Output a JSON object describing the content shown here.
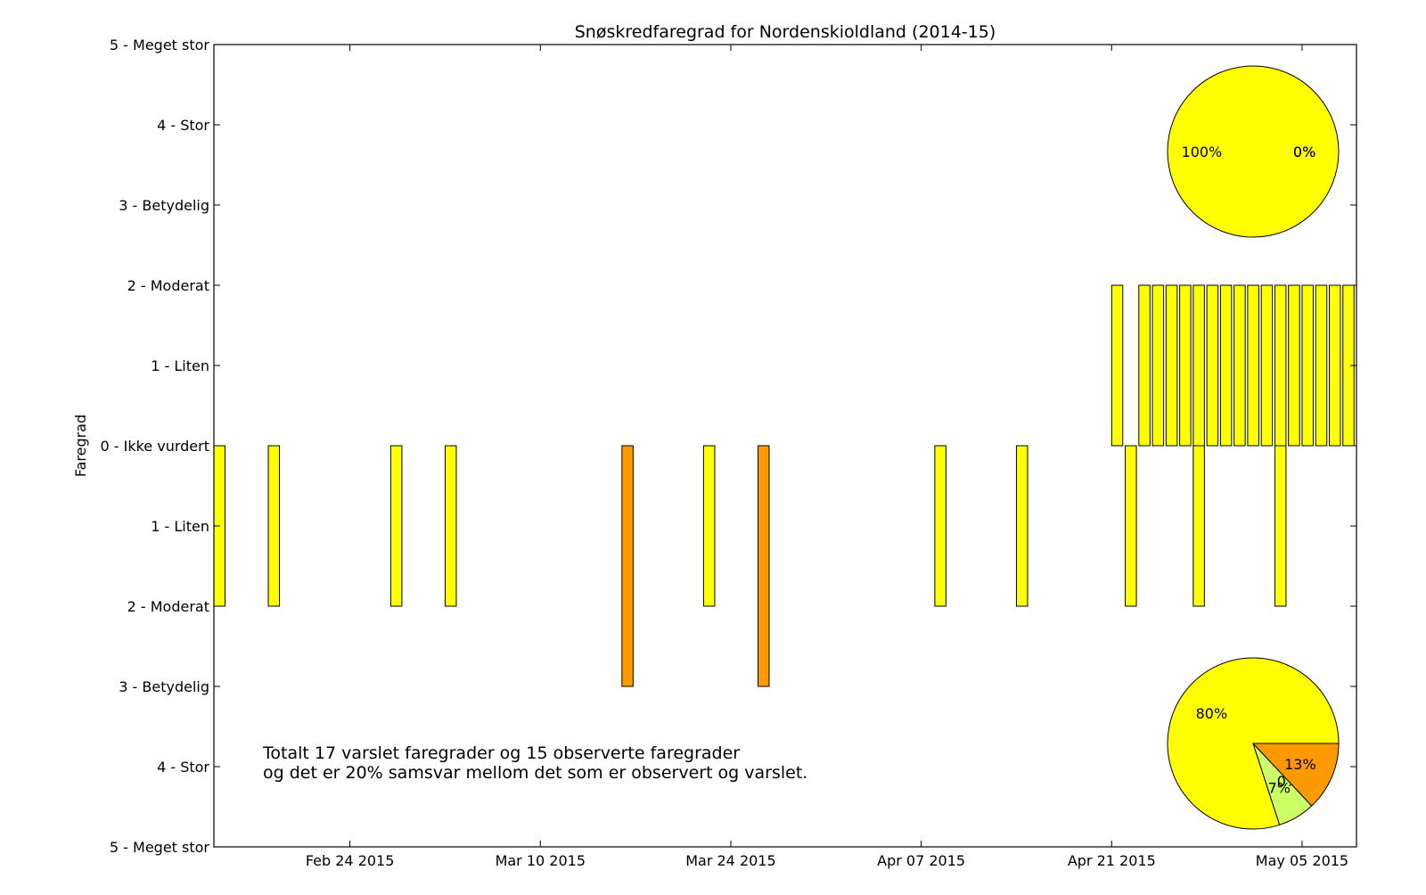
{
  "chart_data": {
    "type": "bar",
    "title": "Snøskredfaregrad for Nordenskioldland (2014-15)",
    "ylabel": "Faregrad",
    "ylim": [
      -5,
      5
    ],
    "xlim": [
      "2015-02-14",
      "2015-05-09"
    ],
    "y_tick_values": [
      5,
      4,
      3,
      2,
      1,
      0,
      -1,
      -2,
      -3,
      -4,
      -5
    ],
    "y_tick_labels": [
      "5 - Meget stor",
      "4 - Stor",
      "3 - Betydelig",
      "2 - Moderat",
      "1 - Liten",
      "0 - Ikke vurdert",
      "1 - Liten",
      "2 - Moderat",
      "3 - Betydelig",
      "4 - Stor",
      "5 - Meget stor"
    ],
    "x_ticks": [
      {
        "date": "2015-02-24",
        "label": "Feb 24 2015"
      },
      {
        "date": "2015-03-10",
        "label": "Mar 10 2015"
      },
      {
        "date": "2015-03-24",
        "label": "Mar 24 2015"
      },
      {
        "date": "2015-04-07",
        "label": "Apr 07 2015"
      },
      {
        "date": "2015-04-21",
        "label": "Apr 21 2015"
      },
      {
        "date": "2015-05-05",
        "label": "May 05 2015"
      }
    ],
    "series": [
      {
        "direction": "up",
        "bars": [
          {
            "date": "2015-04-21",
            "value": 2,
            "color": "#ffff00"
          },
          {
            "date": "2015-04-23",
            "value": 2,
            "color": "#ffff00"
          },
          {
            "date": "2015-04-24",
            "value": 2,
            "color": "#ffff00"
          },
          {
            "date": "2015-04-25",
            "value": 2,
            "color": "#ffff00"
          },
          {
            "date": "2015-04-26",
            "value": 2,
            "color": "#ffff00"
          },
          {
            "date": "2015-04-27",
            "value": 2,
            "color": "#ffff00"
          },
          {
            "date": "2015-04-28",
            "value": 2,
            "color": "#ffff00"
          },
          {
            "date": "2015-04-29",
            "value": 2,
            "color": "#ffff00"
          },
          {
            "date": "2015-04-30",
            "value": 2,
            "color": "#ffff00"
          },
          {
            "date": "2015-05-01",
            "value": 2,
            "color": "#ffff00"
          },
          {
            "date": "2015-05-02",
            "value": 2,
            "color": "#ffff00"
          },
          {
            "date": "2015-05-03",
            "value": 2,
            "color": "#ffff00"
          },
          {
            "date": "2015-05-04",
            "value": 2,
            "color": "#ffff00"
          },
          {
            "date": "2015-05-05",
            "value": 2,
            "color": "#ffff00"
          },
          {
            "date": "2015-05-06",
            "value": 2,
            "color": "#ffff00"
          },
          {
            "date": "2015-05-07",
            "value": 2,
            "color": "#ffff00"
          },
          {
            "date": "2015-05-08",
            "value": 2,
            "color": "#ffff00"
          }
        ]
      },
      {
        "direction": "down",
        "bars": [
          {
            "date": "2015-02-14",
            "value": 2,
            "color": "#ffff00"
          },
          {
            "date": "2015-02-18",
            "value": 2,
            "color": "#ffff00"
          },
          {
            "date": "2015-02-27",
            "value": 2,
            "color": "#ffff00"
          },
          {
            "date": "2015-03-03",
            "value": 2,
            "color": "#ffff00"
          },
          {
            "date": "2015-03-16",
            "value": 3,
            "color": "#ff9900"
          },
          {
            "date": "2015-03-22",
            "value": 2,
            "color": "#ffff00"
          },
          {
            "date": "2015-03-26",
            "value": 3,
            "color": "#ff9900"
          },
          {
            "date": "2015-04-08",
            "value": 2,
            "color": "#ffff00"
          },
          {
            "date": "2015-04-14",
            "value": 2,
            "color": "#ffff00"
          },
          {
            "date": "2015-04-22",
            "value": 2,
            "color": "#ffff00"
          },
          {
            "date": "2015-04-27",
            "value": 2,
            "color": "#ffff00"
          },
          {
            "date": "2015-05-03",
            "value": 2,
            "color": "#ffff00"
          }
        ]
      }
    ],
    "pies": [
      {
        "position": "top-right",
        "slices": [
          {
            "label": "100%",
            "value": 100,
            "color": "#ffff00"
          },
          {
            "label": "0%",
            "value": 0,
            "color": "#ccff66"
          },
          {
            "label": "0%",
            "value": 0,
            "color": "#ff9900"
          }
        ]
      },
      {
        "position": "bottom-right",
        "slices": [
          {
            "label": "80%",
            "value": 80,
            "color": "#ffff00"
          },
          {
            "label": "7%",
            "value": 7,
            "color": "#ccff66"
          },
          {
            "label": "0%",
            "value": 0,
            "color": "#99cc33"
          },
          {
            "label": "13%",
            "value": 13,
            "color": "#ff9900"
          }
        ]
      }
    ],
    "annotation": {
      "line1": "Totalt 17 varslet faregrader og 15 observerte faregrader",
      "line2": "og det er 20% samsvar mellom det som er observert og varslet."
    },
    "grid": false
  }
}
